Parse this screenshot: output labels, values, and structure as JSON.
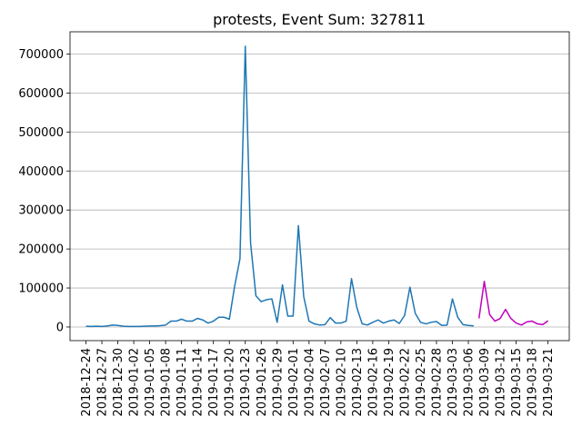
{
  "chart_data": {
    "type": "line",
    "title": "protests, Event Sum: 327811",
    "xlabel": "",
    "ylabel": "",
    "ylim": [
      -35000,
      757000
    ],
    "yticks": [
      0,
      100000,
      200000,
      300000,
      400000,
      500000,
      600000,
      700000
    ],
    "ytick_labels": [
      "0",
      "100000",
      "200000",
      "300000",
      "400000",
      "500000",
      "600000",
      "700000"
    ],
    "xlim": [
      "2018-12-21",
      "2019-03-25"
    ],
    "xtick_labels": [
      "2018-12-24",
      "2018-12-27",
      "2018-12-30",
      "2019-01-02",
      "2019-01-05",
      "2019-01-08",
      "2019-01-11",
      "2019-01-14",
      "2019-01-17",
      "2019-01-20",
      "2019-01-23",
      "2019-01-26",
      "2019-01-29",
      "2019-02-01",
      "2019-02-04",
      "2019-02-07",
      "2019-02-10",
      "2019-02-13",
      "2019-02-16",
      "2019-02-19",
      "2019-02-22",
      "2019-02-25",
      "2019-02-28",
      "2019-03-03",
      "2019-03-06",
      "2019-03-09",
      "2019-03-12",
      "2019-03-15",
      "2019-03-18",
      "2019-03-21"
    ],
    "grid": "horizontal",
    "series": [
      {
        "color": "#1f77b4",
        "x": [
          "2018-12-24",
          "2018-12-25",
          "2018-12-26",
          "2018-12-27",
          "2018-12-28",
          "2018-12-29",
          "2018-12-30",
          "2018-12-31",
          "2019-01-01",
          "2019-01-02",
          "2019-01-03",
          "2019-01-04",
          "2019-01-05",
          "2019-01-06",
          "2019-01-07",
          "2019-01-08",
          "2019-01-09",
          "2019-01-10",
          "2019-01-11",
          "2019-01-12",
          "2019-01-13",
          "2019-01-14",
          "2019-01-15",
          "2019-01-16",
          "2019-01-17",
          "2019-01-18",
          "2019-01-19",
          "2019-01-20",
          "2019-01-21",
          "2019-01-22",
          "2019-01-23",
          "2019-01-24",
          "2019-01-25",
          "2019-01-26",
          "2019-01-27",
          "2019-01-28",
          "2019-01-29",
          "2019-01-30",
          "2019-01-31",
          "2019-02-01",
          "2019-02-02",
          "2019-02-03",
          "2019-02-04",
          "2019-02-05",
          "2019-02-06",
          "2019-02-07",
          "2019-02-08",
          "2019-02-09",
          "2019-02-10",
          "2019-02-11",
          "2019-02-12",
          "2019-02-13",
          "2019-02-14",
          "2019-02-15",
          "2019-02-16",
          "2019-02-17",
          "2019-02-18",
          "2019-02-19",
          "2019-02-20",
          "2019-02-21",
          "2019-02-22",
          "2019-02-23",
          "2019-02-24",
          "2019-02-25",
          "2019-02-26",
          "2019-02-27",
          "2019-02-28",
          "2019-03-01",
          "2019-03-02",
          "2019-03-03",
          "2019-03-04",
          "2019-03-05",
          "2019-03-06",
          "2019-03-07"
        ],
        "values": [
          2000,
          1500,
          2000,
          1500,
          2500,
          5000,
          4000,
          2000,
          1500,
          1500,
          1500,
          2000,
          2500,
          2500,
          3500,
          5000,
          15000,
          15000,
          20000,
          15000,
          15000,
          22000,
          18000,
          10000,
          15000,
          25000,
          25000,
          20000,
          105000,
          175000,
          720000,
          215000,
          80000,
          65000,
          70000,
          72000,
          12000,
          108000,
          28000,
          28000,
          260000,
          78000,
          15000,
          8000,
          5000,
          6000,
          24000,
          10000,
          10000,
          15000,
          124000,
          50000,
          8000,
          5000,
          12000,
          18000,
          10000,
          15000,
          18000,
          9000,
          30000,
          102000,
          35000,
          12000,
          8000,
          12000,
          14000,
          4000,
          5000,
          72000,
          25000,
          6000,
          4000,
          3000
        ]
      },
      {
        "color": "#bf00bf",
        "x": [
          "2019-03-08",
          "2019-03-09",
          "2019-03-10",
          "2019-03-11",
          "2019-03-12",
          "2019-03-13",
          "2019-03-14",
          "2019-03-15",
          "2019-03-16",
          "2019-03-17",
          "2019-03-18",
          "2019-03-19",
          "2019-03-20",
          "2019-03-21"
        ],
        "values": [
          22000,
          117000,
          32000,
          15000,
          22000,
          45000,
          22000,
          10000,
          5000,
          13000,
          15000,
          8000,
          6000,
          16000
        ]
      }
    ]
  }
}
